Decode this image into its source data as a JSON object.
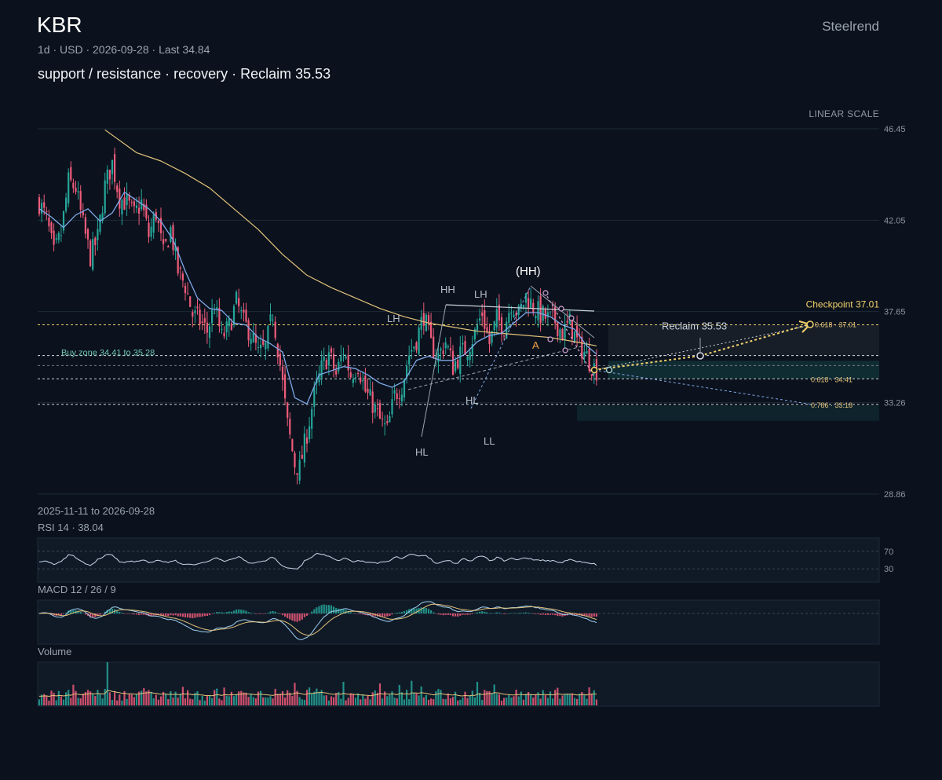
{
  "header": {
    "ticker": "KBR",
    "subline": "1d · USD · 2026-09-28 · Last 34.84",
    "headline": "support / resistance · recovery · Reclaim 35.53",
    "brand": "Steelrend",
    "scale": "LINEAR SCALE",
    "range": "2025-11-11 to 2026-09-28"
  },
  "colors": {
    "background": "#0b121d",
    "up": "#26a69a",
    "down": "#ef5b7a",
    "sma_fast": "#7fa8e8",
    "sma_slow": "#e3c27a",
    "accent": "#f2d06b",
    "grid": "#1c2a38"
  },
  "chart_data": [
    {
      "type": "candlestick",
      "title": "KBR",
      "x_range": [
        "2025-11-11",
        "2026-09-28"
      ],
      "ylim": [
        28.86,
        46.45
      ],
      "y_ticks": [
        "46.45",
        "42.05",
        "37.65",
        "33.26",
        "28.86"
      ],
      "last": 34.84,
      "price_path": [
        [
          0,
          42.9
        ],
        [
          3,
          42.1
        ],
        [
          6,
          40.4
        ],
        [
          9,
          41.4
        ],
        [
          12,
          43.9
        ],
        [
          15,
          43.6
        ],
        [
          18,
          41.8
        ],
        [
          21,
          40.3
        ],
        [
          24,
          41.2
        ],
        [
          27,
          43.7
        ],
        [
          30,
          44.8
        ],
        [
          33,
          43.1
        ],
        [
          36,
          42.9
        ],
        [
          39,
          42.3
        ],
        [
          42,
          42.9
        ],
        [
          45,
          41.3
        ],
        [
          48,
          42.4
        ],
        [
          51,
          40.4
        ],
        [
          54,
          41.6
        ],
        [
          57,
          39.6
        ],
        [
          60,
          38.9
        ],
        [
          63,
          37.5
        ],
        [
          66,
          37.2
        ],
        [
          69,
          36.7
        ],
        [
          72,
          37.9
        ],
        [
          75,
          36.4
        ],
        [
          78,
          36.9
        ],
        [
          81,
          38.1
        ],
        [
          84,
          37.1
        ],
        [
          87,
          36.6
        ],
        [
          90,
          35.6
        ],
        [
          93,
          35.9
        ],
        [
          96,
          37.6
        ],
        [
          99,
          35.1
        ],
        [
          102,
          32.2
        ],
        [
          105,
          30.3
        ],
        [
          107,
          30.1
        ],
        [
          110,
          31.8
        ],
        [
          113,
          33.6
        ],
        [
          116,
          34.9
        ],
        [
          119,
          35.6
        ],
        [
          122,
          34.6
        ],
        [
          125,
          35.8
        ],
        [
          128,
          34.6
        ],
        [
          131,
          35.1
        ],
        [
          134,
          33.8
        ],
        [
          137,
          33.2
        ],
        [
          140,
          32.4
        ],
        [
          143,
          31.9
        ],
        [
          146,
          33.6
        ],
        [
          149,
          34.1
        ],
        [
          152,
          35.6
        ],
        [
          155,
          36.3
        ],
        [
          158,
          37.5
        ],
        [
          161,
          36.0
        ],
        [
          164,
          35.5
        ],
        [
          167,
          36.2
        ],
        [
          170,
          35.0
        ],
        [
          173,
          35.6
        ],
        [
          176,
          35.9
        ],
        [
          179,
          36.6
        ],
        [
          182,
          37.6
        ],
        [
          185,
          36.1
        ],
        [
          188,
          37.3
        ],
        [
          191,
          36.9
        ],
        [
          194,
          38.1
        ],
        [
          197,
          37.5
        ],
        [
          200,
          38.4
        ],
        [
          203,
          37.9
        ],
        [
          206,
          37.5
        ],
        [
          209,
          37.3
        ],
        [
          212,
          37.2
        ],
        [
          215,
          36.6
        ],
        [
          218,
          37.1
        ],
        [
          221,
          36.2
        ],
        [
          224,
          35.7
        ],
        [
          227,
          35.1
        ],
        [
          229,
          34.84
        ]
      ],
      "sma_fast_path": [
        [
          0,
          42.6
        ],
        [
          5,
          42.2
        ],
        [
          10,
          41.7
        ],
        [
          15,
          42.3
        ],
        [
          20,
          42.6
        ],
        [
          25,
          42.0
        ],
        [
          30,
          42.4
        ],
        [
          35,
          43.4
        ],
        [
          40,
          43.0
        ],
        [
          45,
          42.6
        ],
        [
          50,
          42.0
        ],
        [
          55,
          41.1
        ],
        [
          60,
          39.6
        ],
        [
          65,
          38.3
        ],
        [
          70,
          37.8
        ],
        [
          75,
          37.7
        ],
        [
          80,
          37.1
        ],
        [
          85,
          37.0
        ],
        [
          90,
          36.4
        ],
        [
          95,
          36.1
        ],
        [
          100,
          35.7
        ],
        [
          105,
          33.5
        ],
        [
          110,
          33.2
        ],
        [
          115,
          34.6
        ],
        [
          120,
          34.8
        ],
        [
          125,
          35.0
        ],
        [
          130,
          34.9
        ],
        [
          135,
          34.6
        ],
        [
          140,
          34.2
        ],
        [
          145,
          34.0
        ],
        [
          150,
          34.3
        ],
        [
          155,
          35.3
        ],
        [
          160,
          35.5
        ],
        [
          165,
          35.3
        ],
        [
          170,
          35.3
        ],
        [
          175,
          35.6
        ],
        [
          180,
          36.2
        ],
        [
          185,
          36.5
        ],
        [
          190,
          36.6
        ],
        [
          195,
          37.1
        ],
        [
          200,
          37.6
        ],
        [
          205,
          37.6
        ],
        [
          210,
          37.4
        ],
        [
          215,
          37.0
        ],
        [
          220,
          36.8
        ],
        [
          225,
          36.0
        ],
        [
          229,
          35.6
        ]
      ],
      "sma_slow_path": [
        [
          27,
          46.4
        ],
        [
          40,
          45.3
        ],
        [
          50,
          44.9
        ],
        [
          60,
          44.3
        ],
        [
          70,
          43.6
        ],
        [
          80,
          42.6
        ],
        [
          90,
          41.6
        ],
        [
          100,
          40.4
        ],
        [
          110,
          39.4
        ],
        [
          120,
          38.8
        ],
        [
          130,
          38.3
        ],
        [
          140,
          37.8
        ],
        [
          150,
          37.4
        ],
        [
          160,
          37.1
        ],
        [
          170,
          36.9
        ],
        [
          180,
          36.7
        ],
        [
          190,
          36.6
        ],
        [
          200,
          36.5
        ],
        [
          210,
          36.4
        ],
        [
          220,
          36.2
        ],
        [
          229,
          36.0
        ]
      ],
      "levels": [
        {
          "label": "Buy zone 34.41 to 35.28",
          "low": 34.41,
          "high": 35.28
        },
        {
          "value": 37.01,
          "label": "Checkpoint 37.01"
        },
        {
          "value": 35.53,
          "label": "Reclaim 35.53"
        },
        {
          "value": 34.41,
          "label": "0.618 · 34.41"
        },
        {
          "value": 33.18,
          "label": "0.786 · 33.18"
        },
        {
          "value": 37.01,
          "label": "0.618 · 37.01"
        }
      ],
      "swing_labels": [
        {
          "label": "LH",
          "bar": 146,
          "price": 37.4
        },
        {
          "label": "HH",
          "bar": 168,
          "price": 38.0
        },
        {
          "label": "LH",
          "bar": 182,
          "price": 37.6
        },
        {
          "label": "(HH)",
          "bar": 203,
          "price": 38.9
        },
        {
          "label": "HL",
          "bar": 160,
          "price": 31.4
        },
        {
          "label": "HL",
          "bar": 178,
          "price": 34.0
        },
        {
          "label": "LL",
          "bar": 185,
          "price": 32.3
        },
        {
          "label": "A",
          "bar": 202,
          "price": 36.1
        }
      ]
    },
    {
      "type": "line",
      "title": "RSI 14 · 38.04",
      "ylim": [
        0,
        100
      ],
      "levels": [
        "70",
        "30"
      ],
      "last": 38.04
    },
    {
      "type": "bar",
      "title": "MACD 12 / 26 / 9"
    },
    {
      "type": "bar",
      "title": "Volume"
    }
  ]
}
